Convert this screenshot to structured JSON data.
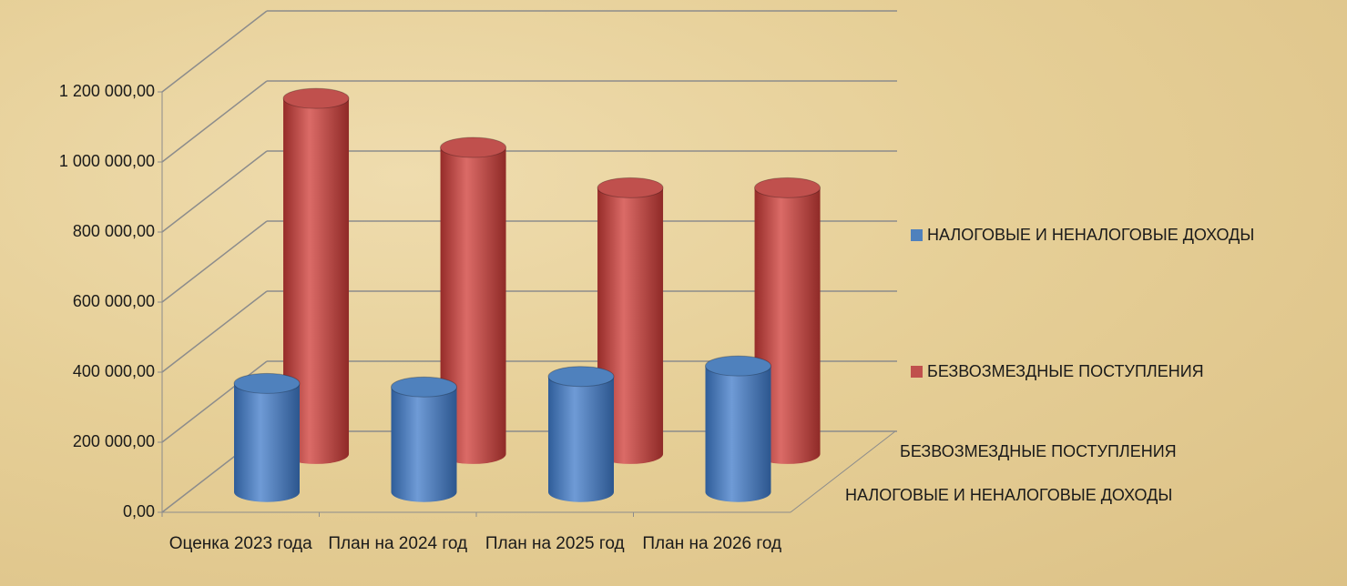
{
  "chart_data": {
    "type": "bar3d",
    "categories": [
      "Оценка 2023 года",
      "План на 2024 год",
      "План на 2025 год",
      "План на 2026 год"
    ],
    "series": [
      {
        "name": "НАЛОГОВЫЕ И НЕНАЛОГОВЫЕ ДОХОДЫ",
        "color": "#4f81bd",
        "values": [
          310000,
          300000,
          330000,
          360000
        ]
      },
      {
        "name": "БЕЗВОЗМЕЗДНЫЕ ПОСТУПЛЕНИЯ",
        "color": "#c0504d",
        "values": [
          1015000,
          875000,
          760000,
          760000
        ]
      }
    ],
    "ylim": [
      0,
      1200000
    ],
    "yticks": [
      {
        "value": 0,
        "label": "0,00"
      },
      {
        "value": 200000,
        "label": "200 000,00"
      },
      {
        "value": 400000,
        "label": "400 000,00"
      },
      {
        "value": 600000,
        "label": "600 000,00"
      },
      {
        "value": 800000,
        "label": "800 000,00"
      },
      {
        "value": 1000000,
        "label": "1 000 000,00"
      },
      {
        "value": 1200000,
        "label": "1 200 000,00"
      }
    ],
    "grid": true,
    "legend": "right"
  }
}
